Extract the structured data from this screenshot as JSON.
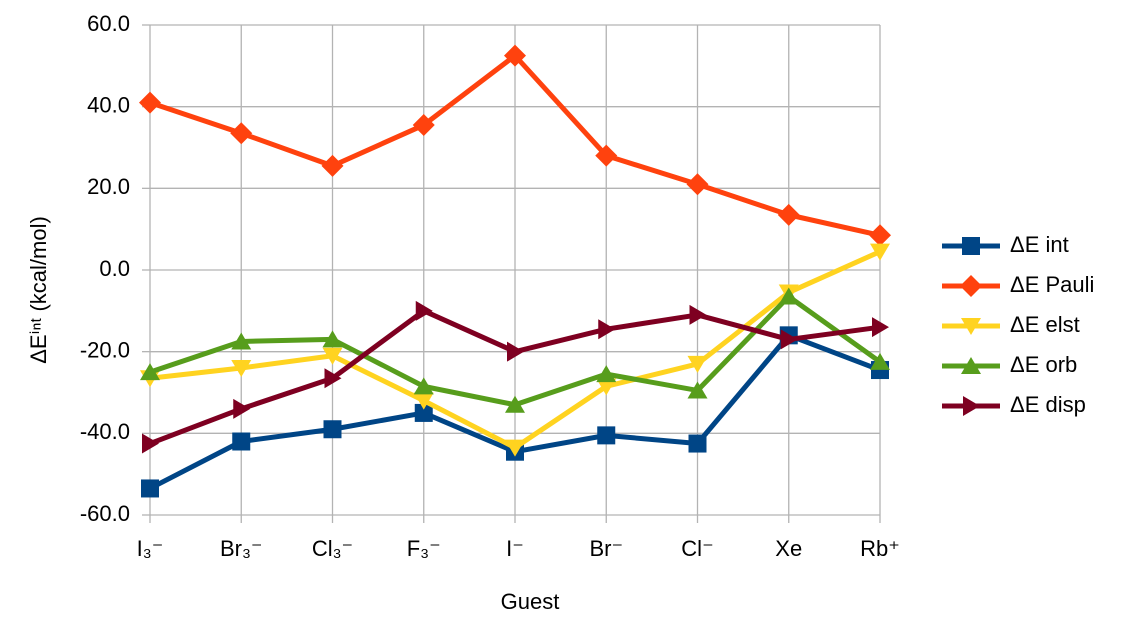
{
  "chart_data": {
    "type": "line",
    "x_label": "Guest",
    "y_label": "ΔEⁱⁿᵗ (kcal/mol)",
    "categories": [
      "I₃⁻",
      "Br₃⁻",
      "Cl₃⁻",
      "F₃⁻",
      "I⁻",
      "Br⁻",
      "Cl⁻",
      "Xe",
      "Rb⁺"
    ],
    "ylim": [
      -60,
      60
    ],
    "yticks": [
      {
        "value": -60,
        "label": "-60.0"
      },
      {
        "value": -40,
        "label": "-40.0"
      },
      {
        "value": -20,
        "label": "-20.0"
      },
      {
        "value": 0,
        "label": "0.0"
      },
      {
        "value": 20,
        "label": "20.0"
      },
      {
        "value": 40,
        "label": "40.0"
      },
      {
        "value": 60,
        "label": "60.0"
      }
    ],
    "grid": true,
    "legend": "right",
    "series": [
      {
        "name": "ΔE int",
        "color": "#004586",
        "marker": "square",
        "values": [
          -53.5,
          -42,
          -39,
          -35,
          -44.5,
          -40.5,
          -42.5,
          -16,
          -24.5
        ]
      },
      {
        "name": "ΔE Pauli",
        "color": "#ff420e",
        "marker": "diamond",
        "values": [
          41,
          33.5,
          25.5,
          35.5,
          52.5,
          28,
          21,
          13.5,
          8.5
        ]
      },
      {
        "name": "ΔE elst",
        "color": "#ffd320",
        "marker": "triangle-down",
        "values": [
          -26.5,
          -24,
          -21,
          -32,
          -43.5,
          -28.5,
          -23,
          -5.5,
          4.5
        ]
      },
      {
        "name": "ΔE orb",
        "color": "#579d1c",
        "marker": "triangle-up",
        "values": [
          -25,
          -17.5,
          -17,
          -28.5,
          -33,
          -25.5,
          -29.5,
          -6.5,
          -22.5
        ]
      },
      {
        "name": "ΔE disp",
        "color": "#7e0021",
        "marker": "triangle-right",
        "values": [
          -42.5,
          -34,
          -26.5,
          -10,
          -20,
          -14.5,
          -11,
          -17,
          -14
        ]
      }
    ]
  }
}
